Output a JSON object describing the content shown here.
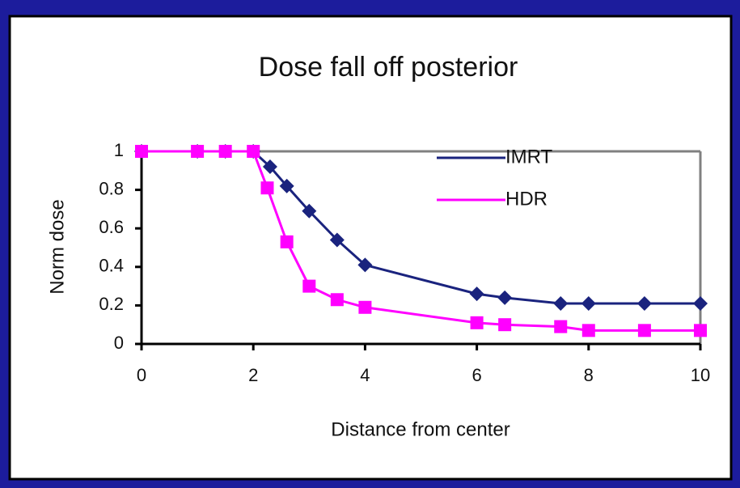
{
  "chart_data": {
    "type": "line",
    "title": "Dose fall off posterior",
    "x_label": "Distance from center",
    "y_label": "Norm dose",
    "xlim": [
      0,
      10
    ],
    "xticks": [
      0,
      2,
      4,
      6,
      8,
      10
    ],
    "ylim": [
      0,
      1
    ],
    "yticks": [
      0,
      0.2,
      0.4,
      0.6,
      0.8,
      1
    ],
    "legend": "top-right",
    "series": [
      {
        "name": "IMRT",
        "color": "#1a237e",
        "marker": "diamond",
        "x": [
          0,
          1,
          1.5,
          2,
          2.3,
          2.6,
          3,
          3.5,
          4,
          6,
          6.5,
          7.5,
          8,
          9,
          10
        ],
        "values": [
          1,
          1,
          1,
          1,
          0.92,
          0.82,
          0.69,
          0.54,
          0.41,
          0.26,
          0.24,
          0.21,
          0.21,
          0.21,
          0.21
        ]
      },
      {
        "name": "HDR",
        "color": "#ff00ff",
        "marker": "square",
        "x": [
          0,
          1,
          1.5,
          2,
          2.25,
          2.6,
          3,
          3.5,
          4,
          6,
          6.5,
          7.5,
          8,
          9,
          10
        ],
        "values": [
          1,
          1,
          1,
          1,
          0.81,
          0.53,
          0.3,
          0.23,
          0.19,
          0.11,
          0.1,
          0.09,
          0.07,
          0.07,
          0.07
        ]
      }
    ]
  }
}
